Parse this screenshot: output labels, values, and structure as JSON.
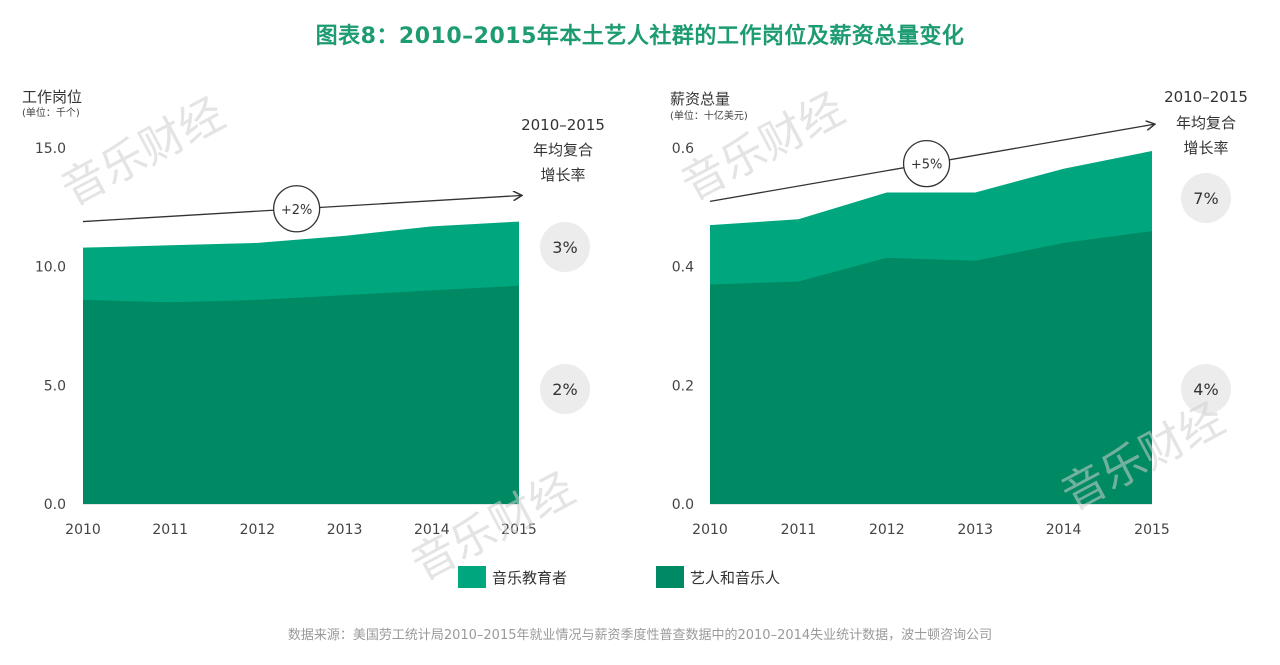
{
  "title": "图表8：2010–2015年本土艺人社群的工作岗位及薪资总量变化",
  "colors": {
    "title": "#1d9b72",
    "music_educators": "#00a77e",
    "artists_musicians": "#008a63",
    "axis": "#cccccc",
    "bubble": "#ececec"
  },
  "legend": [
    {
      "key": "music_educators",
      "label": "音乐教育者",
      "color": "#00a77e"
    },
    {
      "key": "artists_musicians",
      "label": "艺人和音乐人",
      "color": "#008a63"
    }
  ],
  "watermark": "音乐财经",
  "source": "数据来源：美国劳工统计局2010–2015年就业情况与薪资季度性普查数据中的2010–2014失业统计数据，波士顿咨询公司",
  "chart_data": [
    {
      "type": "area",
      "stacked": true,
      "ylabel": "工作岗位",
      "yunit": "(单位：千个)",
      "x": [
        "2010",
        "2011",
        "2012",
        "2013",
        "2014",
        "2015"
      ],
      "ylim": [
        0,
        15
      ],
      "yticks": [
        "0.0",
        "5.0",
        "10.0",
        "15.0"
      ],
      "series": [
        {
          "name": "艺人和音乐人",
          "values": [
            8.6,
            8.5,
            8.6,
            8.8,
            9.0,
            9.2
          ]
        },
        {
          "name": "音乐教育者",
          "values": [
            2.2,
            2.4,
            2.4,
            2.5,
            2.7,
            2.7
          ]
        }
      ],
      "cagr_header": [
        "2010–2015",
        "年均复合",
        "增长率"
      ],
      "cagr": {
        "music_educators": "3%",
        "artists_musicians": "2%"
      },
      "trend": {
        "label": "+2%",
        "start": 11.9,
        "end": 13.0
      }
    },
    {
      "type": "area",
      "stacked": true,
      "ylabel": "薪资总量",
      "yunit": "(单位：十亿美元)",
      "x": [
        "2010",
        "2011",
        "2012",
        "2013",
        "2014",
        "2015"
      ],
      "ylim": [
        0,
        0.6
      ],
      "yticks": [
        "0.0",
        "0.2",
        "0.4",
        "0.6"
      ],
      "series": [
        {
          "name": "艺人和音乐人",
          "values": [
            0.37,
            0.375,
            0.415,
            0.41,
            0.44,
            0.46
          ]
        },
        {
          "name": "音乐教育者",
          "values": [
            0.1,
            0.105,
            0.11,
            0.115,
            0.125,
            0.135
          ]
        }
      ],
      "cagr_header": [
        "2010–2015",
        "年均复合",
        "增长率"
      ],
      "cagr": {
        "music_educators": "7%",
        "artists_musicians": "4%"
      },
      "trend": {
        "label": "+5%",
        "start": 0.51,
        "end": 0.64
      }
    }
  ]
}
